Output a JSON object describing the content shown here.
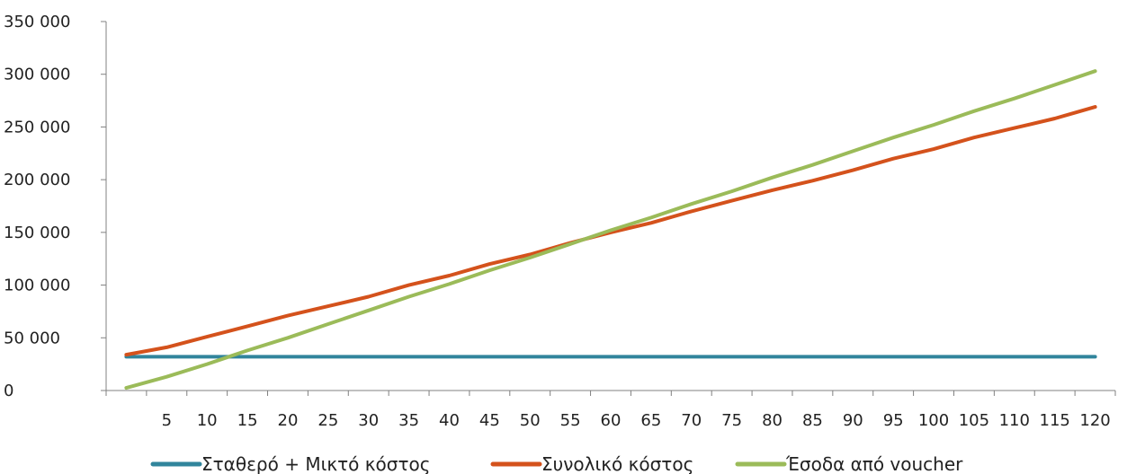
{
  "chart_data": {
    "type": "line",
    "title": "",
    "xlabel": "",
    "ylabel": "",
    "ylim": [
      0,
      350000
    ],
    "yticks": [
      0,
      50000,
      100000,
      150000,
      200000,
      250000,
      300000,
      350000
    ],
    "ytick_labels": [
      "0",
      "50 000",
      "100 000",
      "150 000",
      "200 000",
      "250 000",
      "300 000",
      "350 000"
    ],
    "x": [
      1,
      5,
      10,
      15,
      20,
      25,
      30,
      35,
      40,
      45,
      50,
      55,
      60,
      65,
      70,
      75,
      80,
      85,
      90,
      95,
      100,
      105,
      110,
      115,
      120
    ],
    "xtick_labels": [
      "",
      "5",
      "10",
      "15",
      "20",
      "25",
      "30",
      "35",
      "40",
      "45",
      "50",
      "55",
      "60",
      "65",
      "70",
      "75",
      "80",
      "85",
      "90",
      "95",
      "100",
      "105",
      "110",
      "115",
      "120"
    ],
    "grid": false,
    "legend_position": "bottom",
    "series": [
      {
        "name": "Σταθερό + Μικτό κόστος",
        "color": "#31859C",
        "values": [
          32000,
          32000,
          32000,
          32000,
          32000,
          32000,
          32000,
          32000,
          32000,
          32000,
          32000,
          32000,
          32000,
          32000,
          32000,
          32000,
          32000,
          32000,
          32000,
          32000,
          32000,
          32000,
          32000,
          32000,
          32000
        ]
      },
      {
        "name": "Συνολικό κόστος",
        "color": "#D4521C",
        "values": [
          34000,
          41000,
          51000,
          61000,
          71000,
          80000,
          89000,
          100000,
          109000,
          120000,
          129000,
          140000,
          150000,
          159000,
          170000,
          180000,
          190000,
          199000,
          209000,
          220000,
          229000,
          240000,
          249000,
          258000,
          269000
        ]
      },
      {
        "name": "Έσοδα από voucher",
        "color": "#9BBB59",
        "values": [
          2500,
          13000,
          25000,
          38000,
          50000,
          63000,
          76000,
          89000,
          101000,
          114000,
          126000,
          139000,
          152000,
          164000,
          177000,
          189000,
          202000,
          214000,
          227000,
          240000,
          252000,
          265000,
          277000,
          290000,
          303000
        ]
      }
    ]
  }
}
